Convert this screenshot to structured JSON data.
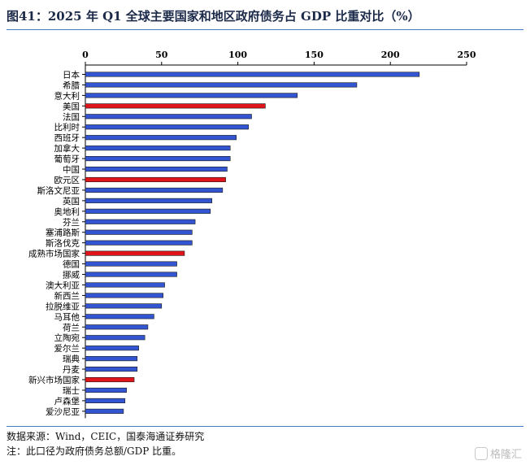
{
  "title": "图41：2025 年 Q1 全球主要国家和地区政府债务占 GDP 比重对比（%）",
  "source": "数据来源：Wind，CEIC，国泰海通证券研究",
  "note": "注：此口径为政府债务总额/GDP 比重。",
  "watermark": "格隆汇",
  "colors": {
    "default_bar": "#3355d1",
    "highlight_bar": "#e0151b",
    "axis": "#000000"
  },
  "chart_data": {
    "type": "bar",
    "orientation": "horizontal",
    "title": "",
    "xlabel": "",
    "ylabel": "",
    "xlim": [
      0,
      250
    ],
    "xticks": [
      0,
      50,
      100,
      150,
      200,
      250
    ],
    "x_axis_position": "top",
    "grid": false,
    "legend": "none",
    "categories": [
      "日本",
      "希腊",
      "意大利",
      "美国",
      "法国",
      "比利时",
      "西班牙",
      "加拿大",
      "葡萄牙",
      "中国",
      "欧元区",
      "斯洛文尼亚",
      "英国",
      "奥地利",
      "芬兰",
      "塞浦路斯",
      "斯洛伐克",
      "成熟市场国家",
      "德国",
      "挪威",
      "澳大利亚",
      "新西兰",
      "拉脱维亚",
      "马耳他",
      "荷兰",
      "立陶宛",
      "爱尔兰",
      "瑞典",
      "丹麦",
      "新兴市场国家",
      "瑞士",
      "卢森堡",
      "爱沙尼亚"
    ],
    "values": [
      219,
      178,
      139,
      118,
      109,
      107,
      99,
      95,
      95,
      93,
      92,
      90,
      83,
      82,
      72,
      70,
      70,
      65,
      60,
      60,
      52,
      51,
      50,
      45,
      41,
      39,
      35,
      34,
      34,
      32,
      27,
      26,
      25
    ],
    "highlight": [
      "美国",
      "欧元区",
      "成熟市场国家",
      "新兴市场国家"
    ]
  }
}
